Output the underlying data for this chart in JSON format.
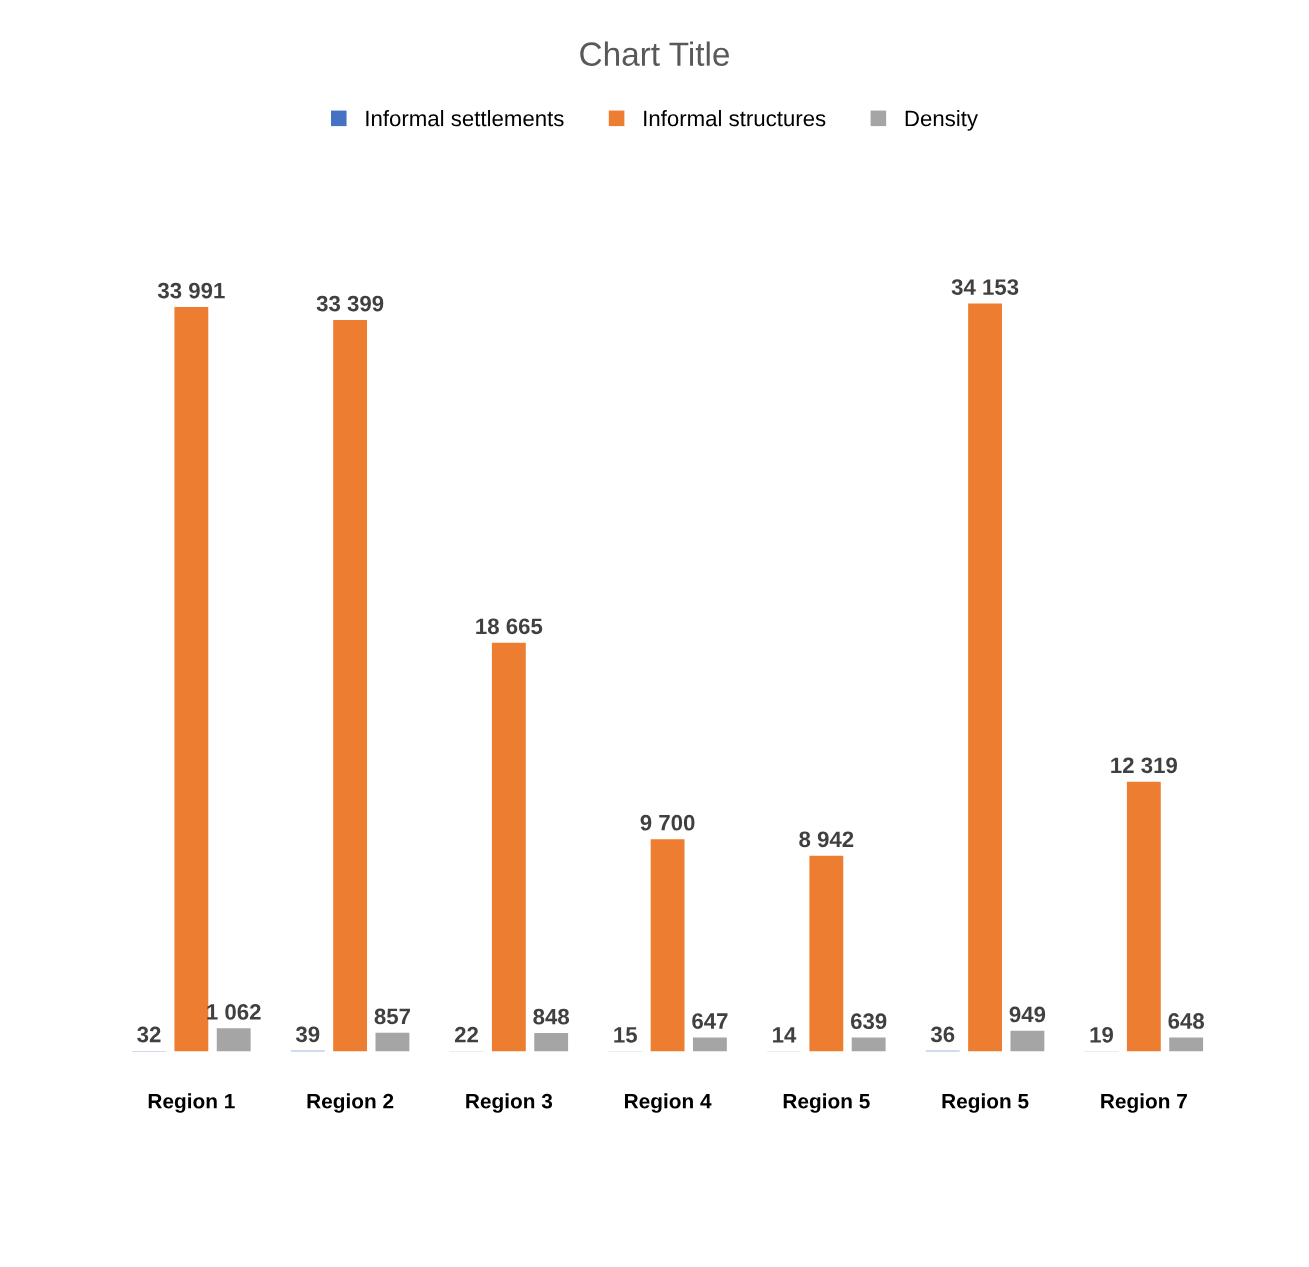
{
  "chart_data": {
    "type": "bar",
    "title": "Chart Title",
    "legend": "top",
    "grid": false,
    "tick_labels": "x",
    "categories": [
      "Region 1",
      "Region 2",
      "Region 3",
      "Region 4",
      "Region 5",
      "Region 5",
      "Region 7"
    ],
    "series": [
      {
        "name": "Informal settlements",
        "color": "#4472c4",
        "values": [
          32,
          39,
          22,
          15,
          14,
          36,
          19
        ],
        "value_labels": [
          "32",
          "39",
          "22",
          "15",
          "14",
          "36",
          "19"
        ]
      },
      {
        "name": "Informal structures",
        "color": "#ed7d31",
        "values": [
          33991,
          33399,
          18665,
          9700,
          8942,
          34153,
          12319
        ],
        "value_labels": [
          "33 991",
          "33 399",
          "18 665",
          "9 700",
          "8 942",
          "34 153",
          "12 319"
        ]
      },
      {
        "name": "Density",
        "color": "#a5a5a5",
        "values": [
          1062,
          857,
          848,
          647,
          639,
          949,
          648
        ],
        "value_labels": [
          "1 062",
          "857",
          "848",
          "647",
          "639",
          "949",
          "648"
        ]
      }
    ]
  }
}
